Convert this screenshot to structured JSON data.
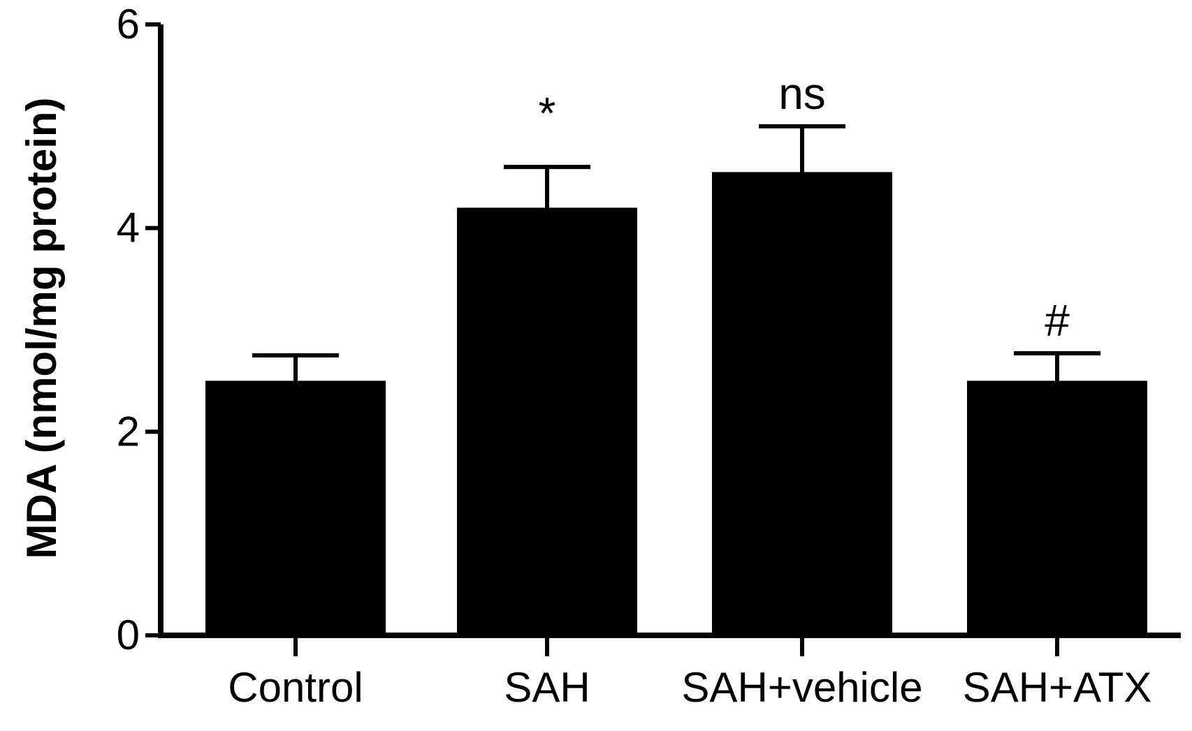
{
  "chart_data": {
    "type": "bar",
    "title": "",
    "xlabel": "",
    "ylabel": "MDA (nmol/mg protein)",
    "ylim": [
      0,
      6
    ],
    "yticks": [
      0,
      2,
      4,
      6
    ],
    "categories": [
      "Control",
      "SAH",
      "SAH+vehicle",
      "SAH+ATX"
    ],
    "values": [
      2.5,
      4.2,
      4.55,
      2.5
    ],
    "errors": [
      0.25,
      0.4,
      0.45,
      0.27
    ],
    "annotations": [
      "",
      "*",
      "ns",
      "#"
    ],
    "bar_color": "#000000",
    "grid": false,
    "legend": "none"
  }
}
